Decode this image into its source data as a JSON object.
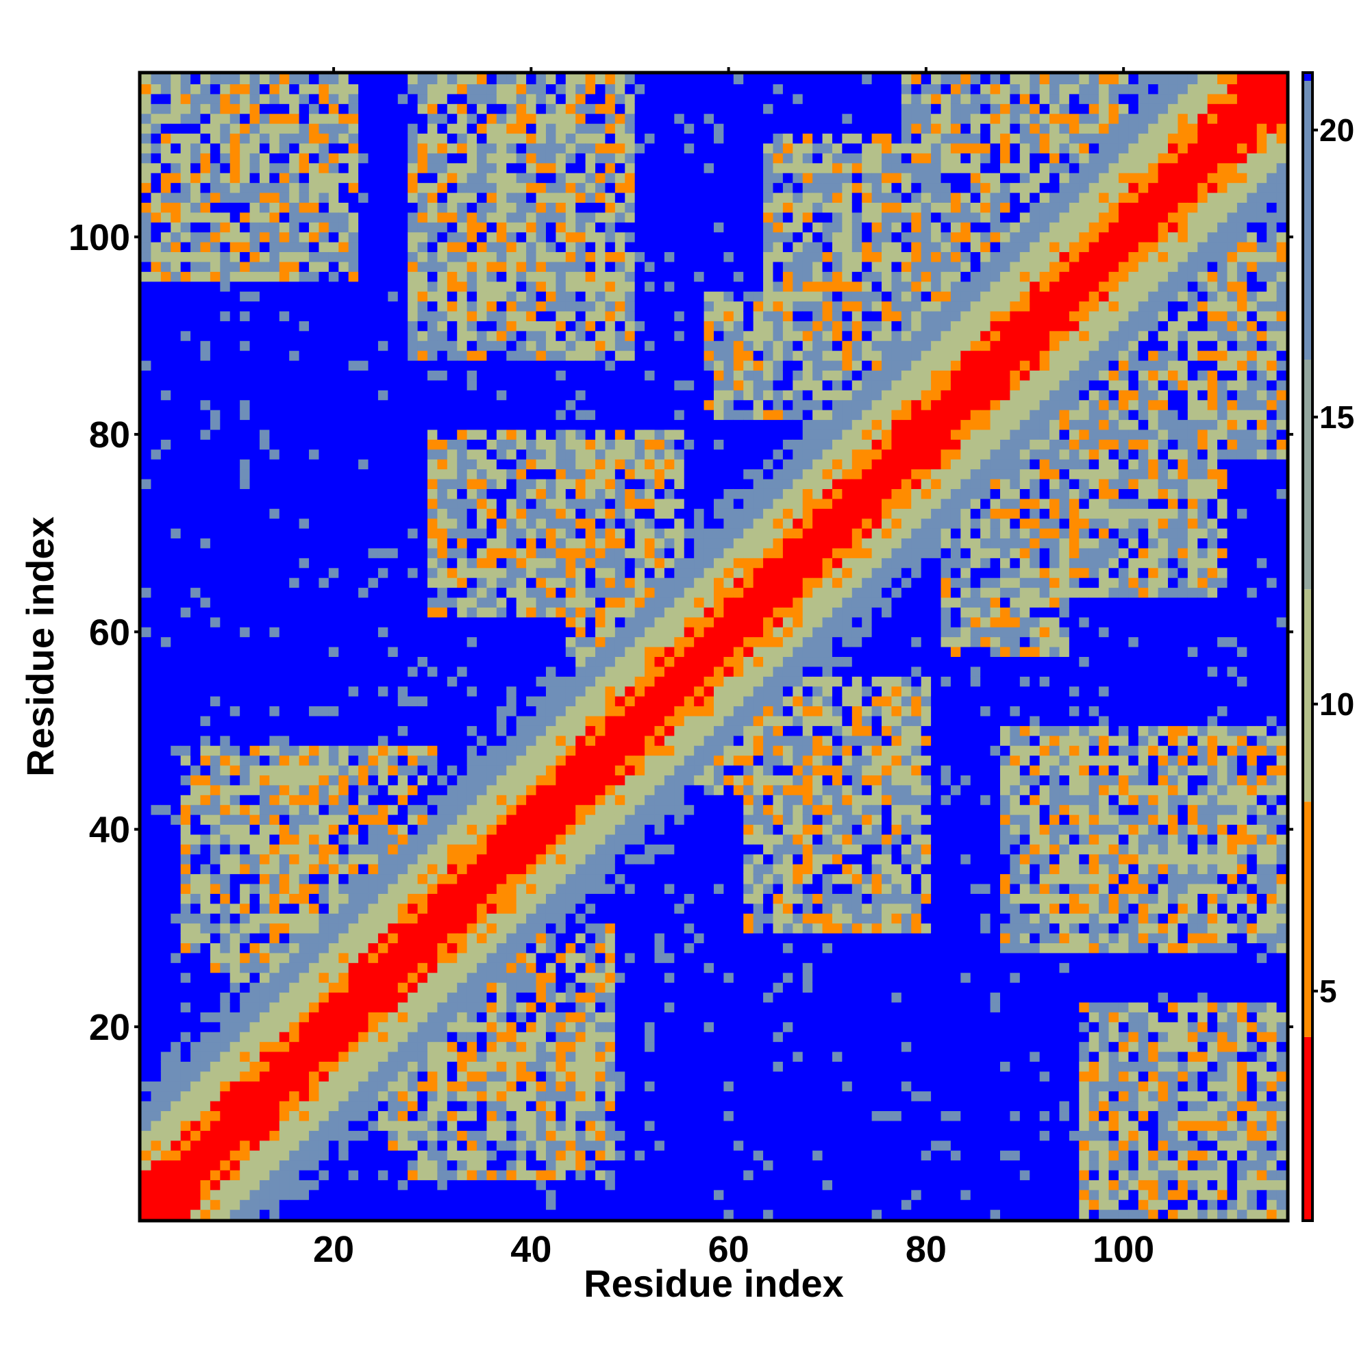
{
  "chart_data": {
    "type": "heatmap",
    "title": "",
    "xlabel": "Residue index",
    "ylabel": "Residue index",
    "xlim": [
      1,
      116
    ],
    "ylim": [
      1,
      116
    ],
    "x_ticks": [
      20,
      40,
      60,
      80,
      100
    ],
    "y_ticks": [
      20,
      40,
      60,
      80,
      100
    ],
    "n_residues": 116,
    "symmetric": true,
    "value_range": [
      1,
      21
    ],
    "colorbar": {
      "ticks": [
        5,
        10,
        15,
        20
      ],
      "orientation": "vertical",
      "placement": "right"
    },
    "colors": {
      "very_close": "#ff0000",
      "close": "#ff8c00",
      "mid_near": "#b4c08a",
      "mid_far": "#6f8fb8",
      "background": "#0000ff"
    },
    "diagonal_band": {
      "red_half_width": 2,
      "orange_half_width": 4,
      "green_half_width": 11
    },
    "contact_regions": [
      {
        "x": [
          1,
          20
        ],
        "y": [
          98,
          116
        ]
      },
      {
        "x": [
          28,
          50
        ],
        "y": [
          88,
          116
        ]
      },
      {
        "x": [
          78,
          100
        ],
        "y": [
          96,
          116
        ]
      },
      {
        "x": [
          30,
          55
        ],
        "y": [
          62,
          80
        ]
      },
      {
        "x": [
          58,
          75
        ],
        "y": [
          82,
          94
        ]
      },
      {
        "x": [
          5,
          28
        ],
        "y": [
          28,
          48
        ]
      },
      {
        "x": [
          25,
          48
        ],
        "y": [
          8,
          30
        ]
      },
      {
        "x": [
          62,
          80
        ],
        "y": [
          36,
          52
        ]
      },
      {
        "x": [
          90,
          112
        ],
        "y": [
          30,
          48
        ]
      },
      {
        "x": [
          96,
          116
        ],
        "y": [
          1,
          22
        ]
      },
      {
        "x": [
          84,
          110
        ],
        "y": [
          64,
          82
        ]
      },
      {
        "x": [
          44,
          62
        ],
        "y": [
          48,
          62
        ]
      }
    ]
  }
}
